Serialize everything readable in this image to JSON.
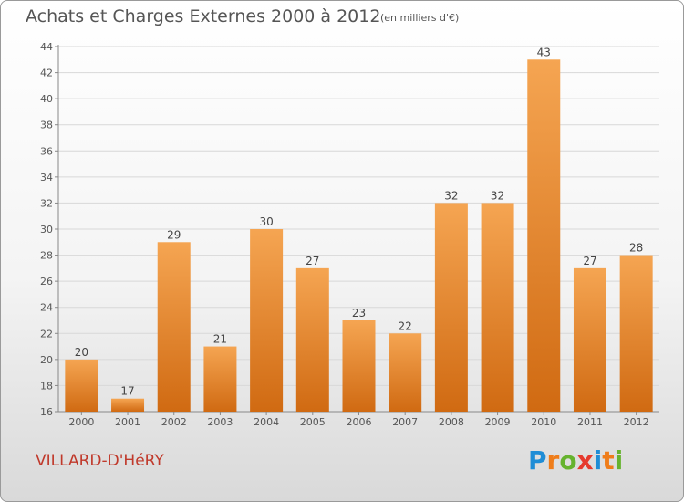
{
  "title": "Achats et Charges Externes 2000 à 2012",
  "subtitle": "(en milliers d'€)",
  "city": "VILLARD-D'HéRY",
  "logo": {
    "letters": [
      "P",
      "r",
      "o",
      "x",
      "i",
      "t",
      "i"
    ],
    "colors": [
      "#1f8dd6",
      "#ef7d1a",
      "#66b32e",
      "#e63a2e",
      "#1f8dd6",
      "#ef7d1a",
      "#66b32e"
    ]
  },
  "colors": {
    "bar_top": "#f5a552",
    "bar_bottom": "#d06a12",
    "city": "#c0392b",
    "text": "#555555"
  },
  "chart_data": {
    "type": "bar",
    "categories": [
      "2000",
      "2001",
      "2002",
      "2003",
      "2004",
      "2005",
      "2006",
      "2007",
      "2008",
      "2009",
      "2010",
      "2011",
      "2012"
    ],
    "values": [
      20,
      17,
      29,
      21,
      30,
      27,
      23,
      22,
      32,
      32,
      43,
      27,
      28
    ],
    "value_labels": [
      "20",
      "17",
      "29",
      "21",
      "30",
      "27",
      "23",
      "22",
      "32",
      "32",
      "43",
      "27",
      "28"
    ],
    "yticks": [
      "16",
      "18",
      "20",
      "22",
      "24",
      "26",
      "28",
      "30",
      "32",
      "34",
      "36",
      "38",
      "40",
      "42",
      "44"
    ],
    "ylim": [
      16,
      44
    ],
    "grid": true
  }
}
